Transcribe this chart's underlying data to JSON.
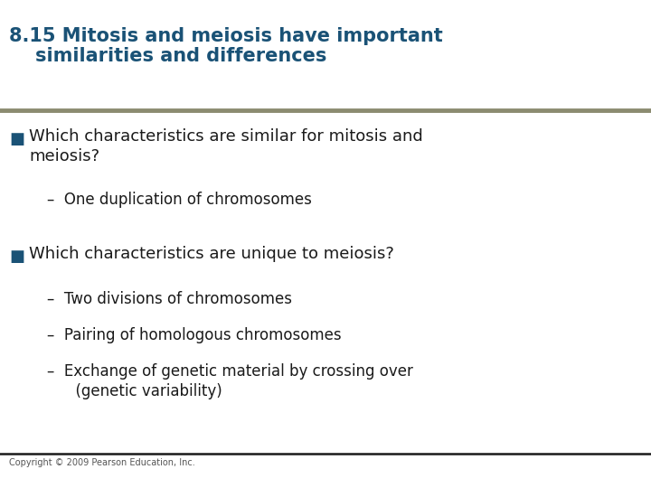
{
  "title_line1": "8.15 Mitosis and meiosis have important",
  "title_line2": "    similarities and differences",
  "title_color": "#1A5276",
  "title_fontsize": 15,
  "title_bold": true,
  "separator_color": "#8B8B70",
  "separator2_color": "#1a1a1a",
  "bg_color": "#FFFFFF",
  "bullet_color": "#1A5276",
  "bullet1_text": "Which characteristics are similar for mitosis and\nmeiosis?",
  "bullet1_fontsize": 13,
  "sub1_text": "–  One duplication of chromosomes",
  "sub_fontsize": 12,
  "bullet2_text": "Which characteristics are unique to meiosis?",
  "bullet2_fontsize": 13,
  "sub2a_text": "–  Two divisions of chromosomes",
  "sub2b_text": "–  Pairing of homologous chromosomes",
  "sub2c_text": "–  Exchange of genetic material by crossing over\n      (genetic variability)",
  "text_color": "#1a1a1a",
  "footer_text": "Copyright © 2009 Pearson Education, Inc.",
  "footer_fontsize": 7,
  "footer_color": "#555555"
}
